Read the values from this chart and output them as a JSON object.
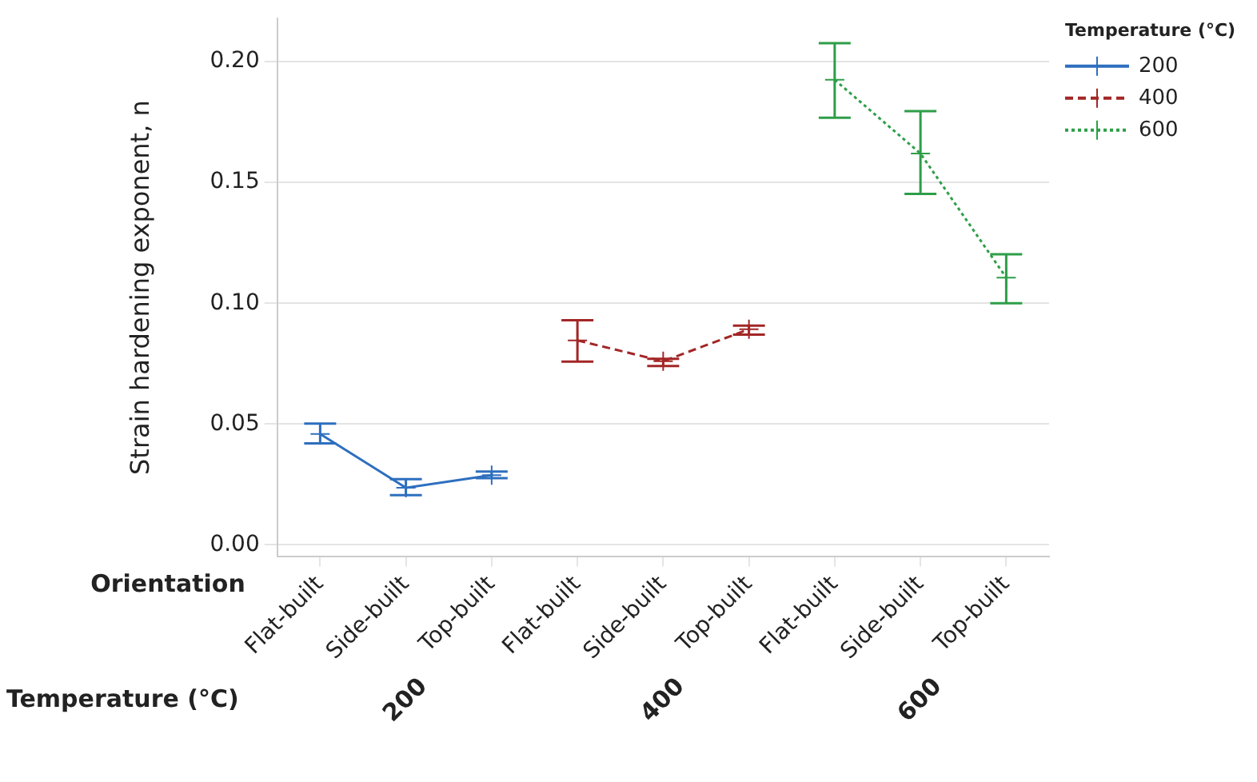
{
  "chart_data": {
    "type": "line",
    "ylabel": "Strain hardening exponent, n",
    "legend_title": "Temperature (°C)",
    "categories": [
      "Flat-built",
      "Side-built",
      "Top-built",
      "Flat-built",
      "Side-built",
      "Top-built",
      "Flat-built",
      "Side-built",
      "Top-built"
    ],
    "series": [
      {
        "name": "200",
        "color": "#2e6fbf",
        "line_style": "solid",
        "values": [
          0.0459,
          0.0236,
          0.0288,
          null,
          null,
          null,
          null,
          null,
          null
        ],
        "errors": [
          [
            0.042,
            0.0502
          ],
          [
            0.0205,
            0.0272
          ],
          [
            0.0276,
            0.0303
          ],
          null,
          null,
          null,
          null,
          null,
          null
        ]
      },
      {
        "name": "400",
        "color": "#a32626",
        "line_style": "dashed",
        "values": [
          null,
          null,
          null,
          0.0846,
          0.076,
          0.0892,
          null,
          null,
          null
        ],
        "errors": [
          null,
          null,
          null,
          [
            0.0758,
            0.093
          ],
          [
            0.074,
            0.077
          ],
          [
            0.087,
            0.0907
          ],
          null,
          null,
          null
        ]
      },
      {
        "name": "600",
        "color": "#2e9e48",
        "line_style": "dotted",
        "values": [
          null,
          null,
          null,
          null,
          null,
          null,
          0.1925,
          0.162,
          0.1106
        ],
        "errors": [
          null,
          null,
          null,
          null,
          null,
          null,
          [
            0.1768,
            0.2077
          ],
          [
            0.1453,
            0.1795
          ],
          [
            0.1,
            0.1203
          ]
        ]
      }
    ],
    "ylim": [
      -0.005,
      0.218
    ],
    "yticks": [
      {
        "value": 0,
        "label": "0.00"
      },
      {
        "value": 0.05,
        "label": "0.05"
      },
      {
        "value": 0.1,
        "label": "0.10"
      },
      {
        "value": 0.15,
        "label": "0.15"
      },
      {
        "value": 0.2,
        "label": "0.20"
      }
    ],
    "grid": "y",
    "legend": "top right",
    "marker": "cross",
    "annotations": [
      "Orientation",
      "Temperature (°C)",
      "200",
      "400",
      "600"
    ]
  }
}
